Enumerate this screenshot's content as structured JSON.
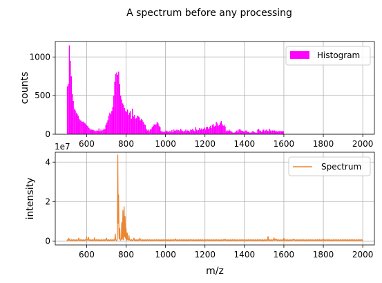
{
  "chart_data": [
    {
      "type": "bar",
      "title": "A spectrum before any processing",
      "ylabel": "counts",
      "xlabel": "",
      "xlim": [
        441,
        2059
      ],
      "ylim": [
        0,
        1200
      ],
      "xticks": [
        "600",
        "800",
        "1000",
        "1200",
        "1400",
        "1600",
        "1800",
        "2000"
      ],
      "xtick_values": [
        600,
        800,
        1000,
        1200,
        1400,
        1600,
        1800,
        2000
      ],
      "yticks": [
        "0",
        "500",
        "1000"
      ],
      "ytick_values": [
        0,
        500,
        1000
      ],
      "offset_text": "1e7",
      "grid": true,
      "legend": {
        "label": "Histogram",
        "position": "top-right"
      },
      "color": "#ff00ff",
      "bin_start": 500,
      "bin_width": 5,
      "values": [
        620,
        650,
        1150,
        950,
        750,
        520,
        430,
        330,
        310,
        280,
        260,
        240,
        200,
        180,
        175,
        160,
        165,
        150,
        140,
        125,
        110,
        100,
        80,
        60,
        65,
        55,
        60,
        50,
        45,
        40,
        50,
        45,
        75,
        40,
        60,
        45,
        55,
        70,
        65,
        120,
        150,
        180,
        240,
        280,
        260,
        300,
        350,
        500,
        680,
        780,
        800,
        770,
        810,
        650,
        500,
        450,
        400,
        380,
        340,
        300,
        290,
        320,
        250,
        280,
        300,
        200,
        330,
        230,
        250,
        200,
        210,
        240,
        230,
        220,
        180,
        200,
        180,
        160,
        130,
        120,
        70,
        50,
        60,
        40,
        60,
        70,
        90,
        110,
        130,
        120,
        130,
        160,
        140,
        110,
        90,
        40,
        40,
        30,
        30,
        35,
        50,
        40,
        35,
        30,
        45,
        30,
        55,
        25,
        60,
        45,
        50,
        60,
        50,
        55,
        40,
        70,
        50,
        40,
        35,
        45,
        60,
        40,
        50,
        45,
        35,
        60,
        55,
        70,
        50,
        40,
        90,
        60,
        50,
        55,
        80,
        60,
        75,
        60,
        70,
        85,
        60,
        90,
        95,
        70,
        90,
        110,
        80,
        120,
        130,
        100,
        110,
        160,
        140,
        110,
        120,
        150,
        170,
        130,
        110,
        120,
        100,
        40,
        50,
        40,
        60,
        45,
        40,
        30,
        20,
        20,
        25,
        40,
        50,
        30,
        60,
        70,
        50,
        40,
        45,
        30,
        40,
        50,
        40,
        30,
        30,
        20,
        20,
        30,
        40,
        35,
        25,
        20,
        20,
        60,
        70,
        50,
        45,
        30,
        50,
        60,
        40,
        50,
        60,
        45,
        40,
        70,
        50,
        40,
        50,
        45,
        50,
        40,
        40,
        35,
        40,
        40,
        40,
        40,
        40,
        40
      ]
    },
    {
      "type": "line",
      "title": "",
      "xlabel": "m/z",
      "ylabel": "intensity",
      "xlim": [
        441,
        2059
      ],
      "ylim": [
        -0.2,
        4.5
      ],
      "xticks": [
        "600",
        "800",
        "1000",
        "1200",
        "1400",
        "1600",
        "1800",
        "2000"
      ],
      "xtick_values": [
        600,
        800,
        1000,
        1200,
        1400,
        1600,
        1800,
        2000
      ],
      "yticks": [
        "0",
        "2",
        "4"
      ],
      "ytick_values": [
        0,
        2,
        4
      ],
      "grid": true,
      "legend": {
        "label": "Spectrum",
        "position": "top-right"
      },
      "color": "#ec8532",
      "baseline": 0.04,
      "x_range": [
        500,
        2000
      ],
      "peaks": [
        {
          "x": 510,
          "y": 0.1
        },
        {
          "x": 560,
          "y": 0.08
        },
        {
          "x": 600,
          "y": 0.18
        },
        {
          "x": 610,
          "y": 0.15
        },
        {
          "x": 640,
          "y": 0.1
        },
        {
          "x": 700,
          "y": 0.12
        },
        {
          "x": 745,
          "y": 0.3
        },
        {
          "x": 758,
          "y": 4.3
        },
        {
          "x": 762,
          "y": 2.3
        },
        {
          "x": 768,
          "y": 0.6
        },
        {
          "x": 778,
          "y": 0.9
        },
        {
          "x": 784,
          "y": 1.5
        },
        {
          "x": 790,
          "y": 1.7
        },
        {
          "x": 795,
          "y": 1.2
        },
        {
          "x": 800,
          "y": 0.6
        },
        {
          "x": 806,
          "y": 0.4
        },
        {
          "x": 815,
          "y": 0.25
        },
        {
          "x": 840,
          "y": 0.12
        },
        {
          "x": 870,
          "y": 0.1
        },
        {
          "x": 1050,
          "y": 0.07
        },
        {
          "x": 1300,
          "y": 0.06
        },
        {
          "x": 1520,
          "y": 0.18
        },
        {
          "x": 1550,
          "y": 0.15
        },
        {
          "x": 1560,
          "y": 0.1
        },
        {
          "x": 1600,
          "y": 0.1
        },
        {
          "x": 1650,
          "y": 0.07
        },
        {
          "x": 1800,
          "y": 0.06
        }
      ]
    }
  ]
}
